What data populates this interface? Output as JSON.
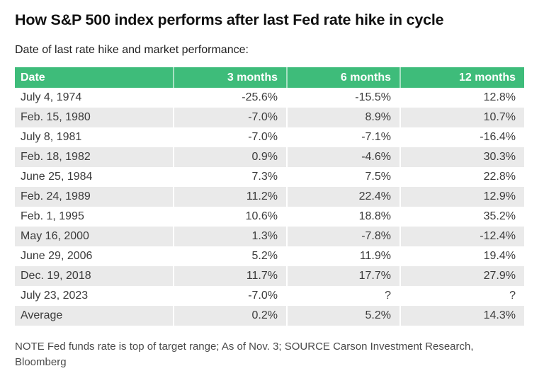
{
  "chart_data": {
    "type": "table",
    "title": "How S&P 500 index performs after last Fed rate hike in cycle",
    "subtitle": "Date of last rate hike and market performance:",
    "columns": [
      "Date",
      "3 months",
      "6 months",
      "12 months"
    ],
    "rows": [
      [
        "July 4, 1974",
        "-25.6%",
        "-15.5%",
        "12.8%"
      ],
      [
        "Feb. 15, 1980",
        "-7.0%",
        "8.9%",
        "10.7%"
      ],
      [
        "July 8, 1981",
        "-7.0%",
        "-7.1%",
        "-16.4%"
      ],
      [
        "Feb. 18, 1982",
        "0.9%",
        "-4.6%",
        "30.3%"
      ],
      [
        "June 25, 1984",
        "7.3%",
        "7.5%",
        "22.8%"
      ],
      [
        "Feb. 24, 1989",
        "11.2%",
        "22.4%",
        "12.9%"
      ],
      [
        "Feb. 1, 1995",
        "10.6%",
        "18.8%",
        "35.2%"
      ],
      [
        "May 16, 2000",
        "1.3%",
        "-7.8%",
        "-12.4%"
      ],
      [
        "June 29, 2006",
        "5.2%",
        "11.9%",
        "19.4%"
      ],
      [
        "Dec. 19, 2018",
        "11.7%",
        "17.7%",
        "27.9%"
      ],
      [
        "July 23, 2023",
        "-7.0%",
        "?",
        "?"
      ],
      [
        "Average",
        "0.2%",
        "5.2%",
        "14.3%"
      ]
    ],
    "note": "NOTE Fed funds rate is top of target range; As of Nov. 3; SOURCE Carson Investment Research, Bloomberg",
    "layout": {
      "legend": "none",
      "grid": "off",
      "row_striping": "alternate"
    }
  },
  "colors": {
    "header_bg": "#3ebc7a",
    "header_text": "#ffffff",
    "row_alt_bg": "#eaeaea",
    "body_text": "#3b3b3b",
    "note_text": "#4a4a4a"
  }
}
